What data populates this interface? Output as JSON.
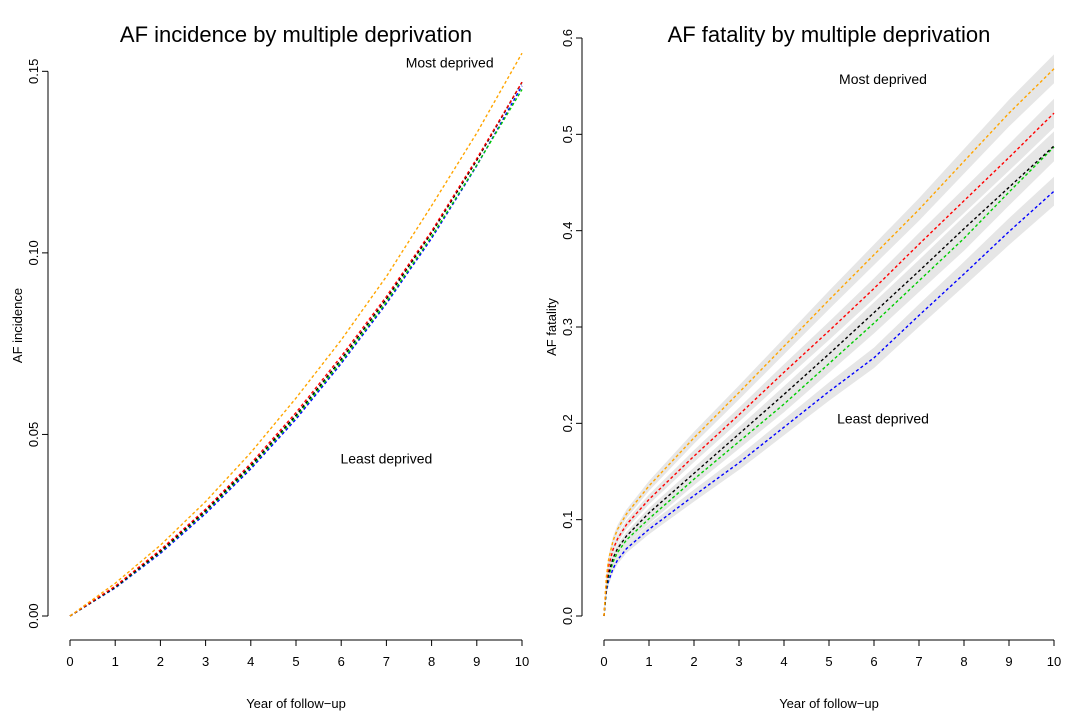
{
  "chart_data": [
    {
      "type": "line",
      "title": "AF incidence by multiple deprivation",
      "xlabel": "Year of follow−up",
      "ylabel": "AF incidence",
      "xlim": [
        0,
        10
      ],
      "ylim": [
        0,
        0.16
      ],
      "xticks": [
        "0",
        "1",
        "2",
        "3",
        "4",
        "5",
        "6",
        "7",
        "8",
        "9",
        "10"
      ],
      "yticks": [
        "0.00",
        "0.05",
        "0.10",
        "0.15"
      ],
      "grid": false,
      "annotations": [
        {
          "text": "Most deprived",
          "x": 8.4,
          "y": 0.151
        },
        {
          "text": "Least deprived",
          "x": 7.0,
          "y": 0.042
        }
      ],
      "x": [
        0,
        1,
        2,
        3,
        4,
        5,
        6,
        7,
        8,
        9,
        10
      ],
      "series": [
        {
          "color": "#FFA500",
          "values": [
            0,
            0.009,
            0.0195,
            0.0315,
            0.045,
            0.06,
            0.076,
            0.0935,
            0.113,
            0.133,
            0.155
          ]
        },
        {
          "color": "#FF0000",
          "values": [
            0,
            0.0082,
            0.0182,
            0.0294,
            0.042,
            0.056,
            0.0715,
            0.088,
            0.106,
            0.126,
            0.147
          ]
        },
        {
          "color": "#000000",
          "values": [
            0,
            0.008,
            0.0178,
            0.029,
            0.0414,
            0.0553,
            0.0707,
            0.0873,
            0.1055,
            0.1255,
            0.147
          ]
        },
        {
          "color": "#00CC00",
          "values": [
            0,
            0.0079,
            0.0176,
            0.0287,
            0.041,
            0.0548,
            0.07,
            0.0865,
            0.1045,
            0.1242,
            0.145
          ]
        },
        {
          "color": "#0000FF",
          "values": [
            0,
            0.0077,
            0.0172,
            0.0282,
            0.0405,
            0.0542,
            0.0695,
            0.086,
            0.104,
            0.124,
            0.146
          ]
        }
      ]
    },
    {
      "type": "line",
      "title": "AF fatality by multiple deprivation",
      "xlabel": "Year of follow−up",
      "ylabel": "AF fatality",
      "xlim": [
        0,
        10
      ],
      "ylim": [
        0,
        0.6
      ],
      "xticks": [
        "0",
        "1",
        "2",
        "3",
        "4",
        "5",
        "6",
        "7",
        "8",
        "9",
        "10"
      ],
      "yticks": [
        "0.0",
        "0.1",
        "0.2",
        "0.3",
        "0.4",
        "0.5",
        "0.6"
      ],
      "grid": false,
      "confidence_band": true,
      "annotations": [
        {
          "text": "Most deprived",
          "x": 6.2,
          "y": 0.552
        },
        {
          "text": "Least deprived",
          "x": 6.2,
          "y": 0.2
        }
      ],
      "x": [
        0,
        0.05,
        0.1,
        0.2,
        0.3,
        0.5,
        1,
        2,
        3,
        4,
        5,
        6,
        7,
        8,
        9,
        10
      ],
      "series": [
        {
          "color": "#FFA500",
          "values": [
            0,
            0.04,
            0.058,
            0.078,
            0.09,
            0.106,
            0.135,
            0.185,
            0.232,
            0.28,
            0.328,
            0.375,
            0.422,
            0.472,
            0.522,
            0.568
          ]
        },
        {
          "color": "#FF0000",
          "values": [
            0,
            0.035,
            0.051,
            0.069,
            0.08,
            0.095,
            0.121,
            0.166,
            0.209,
            0.253,
            0.296,
            0.34,
            0.386,
            0.431,
            0.476,
            0.522
          ]
        },
        {
          "color": "#000000",
          "values": [
            0,
            0.03,
            0.044,
            0.06,
            0.07,
            0.083,
            0.107,
            0.148,
            0.189,
            0.23,
            0.272,
            0.315,
            0.358,
            0.402,
            0.445,
            0.488
          ]
        },
        {
          "color": "#00CC00",
          "values": [
            0,
            0.028,
            0.041,
            0.056,
            0.066,
            0.079,
            0.101,
            0.142,
            0.181,
            0.22,
            0.262,
            0.304,
            0.348,
            0.392,
            0.44,
            0.487
          ]
        },
        {
          "color": "#0000FF",
          "values": [
            0,
            0.025,
            0.036,
            0.049,
            0.058,
            0.07,
            0.09,
            0.125,
            0.159,
            0.196,
            0.233,
            0.268,
            0.312,
            0.355,
            0.399,
            0.441
          ]
        }
      ]
    }
  ]
}
